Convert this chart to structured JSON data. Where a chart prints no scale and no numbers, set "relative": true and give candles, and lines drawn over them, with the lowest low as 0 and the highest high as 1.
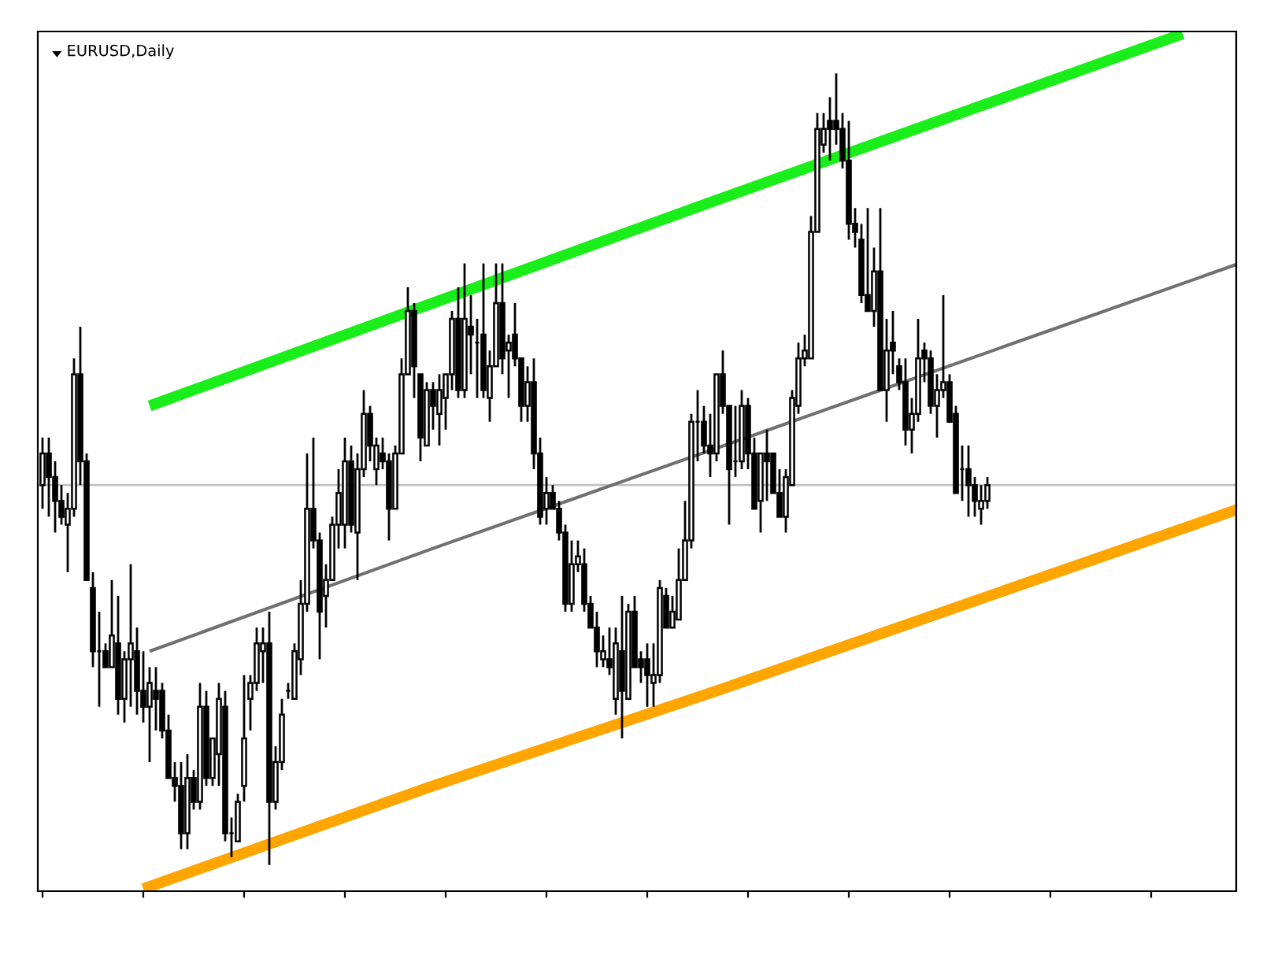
{
  "chart_data": {
    "type": "candlestick",
    "title": "EURUSD,Daily",
    "relative": true,
    "tick_labels": false,
    "legend": false,
    "grid": false,
    "categories": [
      null,
      null,
      null,
      null,
      null,
      null,
      null,
      null,
      null,
      null,
      null,
      null,
      null,
      null,
      null,
      null,
      null,
      null,
      null,
      null,
      null,
      null,
      null,
      null,
      null,
      null,
      null,
      null,
      null,
      null,
      null,
      null,
      null,
      null,
      null,
      null,
      null,
      null,
      null,
      null,
      null,
      null,
      null,
      null,
      null,
      null,
      null,
      null,
      null,
      null,
      null,
      null,
      null,
      null,
      null,
      null,
      null,
      null,
      null,
      null,
      null,
      null,
      null,
      null,
      null,
      null,
      null,
      null,
      null,
      null,
      null,
      null,
      null,
      null,
      null,
      null,
      null,
      null,
      null,
      null,
      null,
      null,
      null,
      null,
      null,
      null,
      null,
      null,
      null,
      null,
      null,
      null,
      null,
      null,
      null,
      null,
      null,
      null,
      null,
      null,
      null,
      null,
      null,
      null,
      null,
      null,
      null,
      null,
      null,
      null,
      null,
      null,
      null,
      null,
      null,
      null,
      null,
      null,
      null,
      null,
      null,
      null,
      null,
      null,
      null,
      null,
      null,
      null,
      null,
      null,
      null,
      null,
      null,
      null,
      null,
      null,
      null,
      null,
      null,
      null,
      null,
      null,
      null,
      null,
      null,
      null,
      null,
      null,
      null,
      null,
      null,
      null,
      null,
      null,
      null,
      null,
      null,
      null,
      null,
      null,
      null,
      null,
      null,
      null,
      null,
      null,
      null,
      null,
      null,
      null,
      null,
      null,
      null,
      null,
      null,
      null,
      null,
      null,
      null,
      null,
      null,
      null,
      null,
      null,
      null,
      null,
      null,
      null,
      null,
      null,
      null
    ],
    "ohlc": [
      [
        0.48,
        0.54,
        0.45,
        0.52
      ],
      [
        0.52,
        0.54,
        0.44,
        0.49
      ],
      [
        0.49,
        0.51,
        0.42,
        0.46
      ],
      [
        0.46,
        0.48,
        0.43,
        0.44
      ],
      [
        0.43,
        0.47,
        0.37,
        0.45
      ],
      [
        0.45,
        0.64,
        0.44,
        0.62
      ],
      [
        0.62,
        0.68,
        0.48,
        0.51
      ],
      [
        0.51,
        0.52,
        0.36,
        0.36
      ],
      [
        0.35,
        0.37,
        0.25,
        0.27
      ],
      [
        0.27,
        0.32,
        0.2,
        0.27
      ],
      [
        0.27,
        0.28,
        0.25,
        0.25
      ],
      [
        0.25,
        0.36,
        0.25,
        0.29
      ],
      [
        0.28,
        0.34,
        0.19,
        0.21
      ],
      [
        0.21,
        0.27,
        0.18,
        0.26
      ],
      [
        0.26,
        0.38,
        0.2,
        0.28
      ],
      [
        0.27,
        0.3,
        0.19,
        0.22
      ],
      [
        0.22,
        0.27,
        0.18,
        0.2
      ],
      [
        0.2,
        0.25,
        0.13,
        0.23
      ],
      [
        0.22,
        0.25,
        0.17,
        0.21
      ],
      [
        0.22,
        0.23,
        0.16,
        0.17
      ],
      [
        0.17,
        0.19,
        0.11,
        0.11
      ],
      [
        0.11,
        0.13,
        0.08,
        0.1
      ],
      [
        0.1,
        0.13,
        0.02,
        0.04
      ],
      [
        0.04,
        0.14,
        0.02,
        0.11
      ],
      [
        0.11,
        0.12,
        0.07,
        0.08
      ],
      [
        0.08,
        0.23,
        0.07,
        0.2
      ],
      [
        0.2,
        0.22,
        0.1,
        0.11
      ],
      [
        0.11,
        0.16,
        0.1,
        0.16
      ],
      [
        0.14,
        0.23,
        0.1,
        0.21
      ],
      [
        0.2,
        0.22,
        0.03,
        0.04
      ],
      [
        0.04,
        0.06,
        0.01,
        0.04
      ],
      [
        0.03,
        0.09,
        0.03,
        0.08
      ],
      [
        0.1,
        0.24,
        0.08,
        0.16
      ],
      [
        0.21,
        0.24,
        0.17,
        0.23
      ],
      [
        0.23,
        0.3,
        0.22,
        0.28
      ],
      [
        0.27,
        0.3,
        0.23,
        0.28
      ],
      [
        0.28,
        0.32,
        0.0,
        0.08
      ],
      [
        0.08,
        0.15,
        0.07,
        0.13
      ],
      [
        0.13,
        0.21,
        0.12,
        0.19
      ],
      [
        0.22,
        0.23,
        0.21,
        0.22
      ],
      [
        0.21,
        0.28,
        0.21,
        0.27
      ],
      [
        0.26,
        0.36,
        0.24,
        0.33
      ],
      [
        0.33,
        0.52,
        0.32,
        0.45
      ],
      [
        0.45,
        0.54,
        0.4,
        0.41
      ],
      [
        0.41,
        0.42,
        0.26,
        0.32
      ],
      [
        0.34,
        0.38,
        0.3,
        0.36
      ],
      [
        0.36,
        0.44,
        0.36,
        0.43
      ],
      [
        0.43,
        0.5,
        0.4,
        0.47
      ],
      [
        0.43,
        0.54,
        0.4,
        0.51
      ],
      [
        0.51,
        0.53,
        0.42,
        0.43
      ],
      [
        0.42,
        0.52,
        0.36,
        0.5
      ],
      [
        0.5,
        0.6,
        0.49,
        0.57
      ],
      [
        0.57,
        0.58,
        0.51,
        0.53
      ],
      [
        0.5,
        0.54,
        0.48,
        0.53
      ],
      [
        0.52,
        0.54,
        0.5,
        0.51
      ],
      [
        0.51,
        0.52,
        0.41,
        0.45
      ],
      [
        0.45,
        0.53,
        0.45,
        0.52
      ],
      [
        0.52,
        0.64,
        0.52,
        0.62
      ],
      [
        0.62,
        0.73,
        0.62,
        0.7
      ],
      [
        0.7,
        0.71,
        0.59,
        0.63
      ],
      [
        0.62,
        0.62,
        0.51,
        0.54
      ],
      [
        0.53,
        0.61,
        0.53,
        0.6
      ],
      [
        0.6,
        0.61,
        0.55,
        0.58
      ],
      [
        0.57,
        0.62,
        0.53,
        0.6
      ],
      [
        0.59,
        0.62,
        0.55,
        0.62
      ],
      [
        0.62,
        0.7,
        0.6,
        0.69
      ],
      [
        0.69,
        0.73,
        0.59,
        0.6
      ],
      [
        0.6,
        0.76,
        0.59,
        0.69
      ],
      [
        0.68,
        0.72,
        0.62,
        0.67
      ],
      [
        0.66,
        0.69,
        0.59,
        0.66
      ],
      [
        0.67,
        0.76,
        0.59,
        0.6
      ],
      [
        0.59,
        0.65,
        0.56,
        0.63
      ],
      [
        0.63,
        0.76,
        0.63,
        0.71
      ],
      [
        0.71,
        0.76,
        0.62,
        0.64
      ],
      [
        0.65,
        0.67,
        0.59,
        0.66
      ],
      [
        0.67,
        0.71,
        0.63,
        0.64
      ],
      [
        0.64,
        0.64,
        0.56,
        0.58
      ],
      [
        0.58,
        0.63,
        0.56,
        0.61
      ],
      [
        0.61,
        0.64,
        0.5,
        0.52
      ],
      [
        0.52,
        0.54,
        0.43,
        0.44
      ],
      [
        0.45,
        0.49,
        0.43,
        0.47
      ],
      [
        0.47,
        0.48,
        0.45,
        0.45
      ],
      [
        0.45,
        0.46,
        0.41,
        0.42
      ],
      [
        0.42,
        0.43,
        0.32,
        0.33
      ],
      [
        0.33,
        0.41,
        0.32,
        0.38
      ],
      [
        0.38,
        0.41,
        0.37,
        0.39
      ],
      [
        0.38,
        0.4,
        0.32,
        0.33
      ],
      [
        0.33,
        0.34,
        0.3,
        0.3
      ],
      [
        0.3,
        0.32,
        0.25,
        0.27
      ],
      [
        0.26,
        0.29,
        0.25,
        0.27
      ],
      [
        0.26,
        0.3,
        0.24,
        0.25
      ],
      [
        0.21,
        0.3,
        0.19,
        0.28
      ],
      [
        0.27,
        0.34,
        0.16,
        0.22
      ],
      [
        0.21,
        0.33,
        0.21,
        0.32
      ],
      [
        0.32,
        0.34,
        0.25,
        0.25
      ],
      [
        0.26,
        0.27,
        0.23,
        0.25
      ],
      [
        0.26,
        0.28,
        0.2,
        0.24
      ],
      [
        0.23,
        0.28,
        0.2,
        0.24
      ],
      [
        0.24,
        0.36,
        0.23,
        0.35
      ],
      [
        0.34,
        0.35,
        0.3,
        0.3
      ],
      [
        0.3,
        0.34,
        0.3,
        0.32
      ],
      [
        0.31,
        0.4,
        0.31,
        0.36
      ],
      [
        0.36,
        0.46,
        0.36,
        0.41
      ],
      [
        0.41,
        0.57,
        0.4,
        0.56
      ],
      [
        0.56,
        0.6,
        0.51,
        0.56
      ],
      [
        0.56,
        0.58,
        0.52,
        0.53
      ],
      [
        0.53,
        0.57,
        0.49,
        0.52
      ],
      [
        0.52,
        0.62,
        0.51,
        0.62
      ],
      [
        0.62,
        0.65,
        0.57,
        0.58
      ],
      [
        0.58,
        0.58,
        0.43,
        0.5
      ],
      [
        0.51,
        0.58,
        0.49,
        0.51
      ],
      [
        0.51,
        0.6,
        0.5,
        0.58
      ],
      [
        0.58,
        0.59,
        0.5,
        0.52
      ],
      [
        0.52,
        0.54,
        0.45,
        0.45
      ],
      [
        0.46,
        0.52,
        0.42,
        0.52
      ],
      [
        0.52,
        0.55,
        0.46,
        0.51
      ],
      [
        0.52,
        0.52,
        0.47,
        0.47
      ],
      [
        0.47,
        0.5,
        0.44,
        0.44
      ],
      [
        0.44,
        0.5,
        0.42,
        0.49
      ],
      [
        0.48,
        0.6,
        0.48,
        0.59
      ],
      [
        0.58,
        0.66,
        0.57,
        0.64
      ],
      [
        0.64,
        0.67,
        0.63,
        0.65
      ],
      [
        0.64,
        0.82,
        0.64,
        0.8
      ],
      [
        0.8,
        0.95,
        0.8,
        0.93
      ],
      [
        0.91,
        0.95,
        0.9,
        0.93
      ],
      [
        0.94,
        0.97,
        0.89,
        0.93
      ],
      [
        0.94,
        1.0,
        0.91,
        0.93
      ],
      [
        0.93,
        0.95,
        0.88,
        0.89
      ],
      [
        0.89,
        0.94,
        0.79,
        0.81
      ],
      [
        0.81,
        0.83,
        0.78,
        0.8
      ],
      [
        0.79,
        0.81,
        0.71,
        0.72
      ],
      [
        0.72,
        0.83,
        0.7,
        0.7
      ],
      [
        0.7,
        0.78,
        0.68,
        0.75
      ],
      [
        0.75,
        0.83,
        0.6,
        0.6
      ],
      [
        0.6,
        0.69,
        0.56,
        0.65
      ],
      [
        0.66,
        0.7,
        0.62,
        0.65
      ],
      [
        0.63,
        0.64,
        0.6,
        0.61
      ],
      [
        0.61,
        0.64,
        0.53,
        0.55
      ],
      [
        0.55,
        0.59,
        0.52,
        0.57
      ],
      [
        0.57,
        0.69,
        0.56,
        0.64
      ],
      [
        0.65,
        0.66,
        0.61,
        0.64
      ],
      [
        0.64,
        0.65,
        0.57,
        0.58
      ],
      [
        0.58,
        0.62,
        0.54,
        0.6
      ],
      [
        0.6,
        0.72,
        0.59,
        0.61
      ],
      [
        0.61,
        0.62,
        0.56,
        0.56
      ],
      [
        0.57,
        0.58,
        0.47,
        0.47
      ],
      [
        0.5,
        0.53,
        0.46,
        0.5
      ],
      [
        0.5,
        0.53,
        0.44,
        0.48
      ],
      [
        0.48,
        0.49,
        0.44,
        0.46
      ],
      [
        0.45,
        0.48,
        0.43,
        0.46
      ],
      [
        0.46,
        0.49,
        0.45,
        0.48
      ],
      null,
      null,
      null,
      null,
      null,
      null,
      null,
      null,
      null,
      null,
      null,
      null,
      null,
      null,
      null,
      null,
      null,
      null,
      null,
      null,
      null,
      null,
      null,
      null,
      null,
      null,
      null,
      null,
      null,
      null,
      null,
      null,
      null,
      null,
      null,
      null,
      null,
      null,
      null,
      null
    ],
    "series": [
      {
        "type": "line",
        "color": "#1aee1a",
        "values": [
          null,
          null,
          null,
          null,
          null,
          null,
          null,
          null,
          null,
          null,
          null,
          null,
          null,
          null,
          null,
          null,
          null,
          0.58,
          null,
          null,
          null,
          null,
          null,
          null,
          null,
          null,
          null,
          null,
          null,
          null,
          null,
          null,
          null,
          null,
          null,
          null,
          null,
          null,
          null,
          null,
          null,
          null,
          null,
          null,
          null,
          null,
          null,
          null,
          null,
          null,
          null,
          null,
          null,
          null,
          null,
          null,
          null,
          null,
          null,
          null,
          null,
          null,
          0.71,
          null,
          null,
          null,
          null,
          null,
          null,
          null,
          null,
          null,
          null,
          null,
          null,
          null,
          null,
          null,
          null,
          null,
          null,
          null,
          null,
          null,
          null,
          null,
          null,
          null,
          null,
          null,
          null,
          null,
          null,
          null,
          null,
          null,
          null,
          null,
          null,
          null,
          null,
          null,
          null,
          null,
          null,
          null,
          null,
          0.84,
          null,
          null,
          null,
          null,
          null,
          null,
          null,
          null,
          null,
          null,
          null,
          null,
          null,
          null,
          null,
          null,
          null,
          null,
          null,
          null,
          null,
          null,
          null,
          null,
          null,
          null,
          null,
          null,
          null,
          null,
          null,
          null,
          null,
          null,
          null,
          null,
          null,
          null,
          null,
          null,
          null,
          null,
          null,
          null,
          null,
          null,
          null,
          null,
          null,
          null,
          null,
          null,
          null,
          null,
          null,
          null,
          null,
          null,
          null,
          null,
          null,
          null,
          null,
          null,
          null,
          null,
          null,
          null,
          null,
          null,
          null,
          null,
          null,
          1.05,
          null,
          null,
          null,
          null,
          null,
          null,
          null,
          null,
          null
        ]
      },
      {
        "type": "line",
        "color": "#707070",
        "values": [
          null,
          null,
          null,
          null,
          null,
          null,
          null,
          null,
          null,
          null,
          null,
          null,
          null,
          null,
          null,
          null,
          null,
          0.27,
          null,
          null,
          null,
          null,
          null,
          null,
          null,
          null,
          null,
          null,
          null,
          null,
          null,
          null,
          null,
          null,
          null,
          null,
          null,
          null,
          null,
          null,
          null,
          null,
          null,
          null,
          null,
          null,
          null,
          null,
          null,
          null,
          null,
          null,
          null,
          null,
          null,
          null,
          null,
          null,
          null,
          null,
          null,
          null,
          0.4,
          null,
          null,
          null,
          null,
          null,
          null,
          null,
          null,
          null,
          null,
          null,
          null,
          null,
          null,
          null,
          null,
          null,
          null,
          null,
          null,
          null,
          null,
          null,
          null,
          null,
          null,
          null,
          null,
          null,
          null,
          null,
          null,
          null,
          null,
          null,
          null,
          null,
          null,
          null,
          null,
          null,
          null,
          null,
          null,
          null,
          null,
          null,
          null,
          null,
          null,
          null,
          null,
          null,
          null,
          null,
          null,
          null,
          null,
          null,
          null,
          null,
          null,
          null,
          null,
          null,
          null,
          null,
          null,
          null,
          null,
          null,
          null,
          null,
          null,
          null,
          null,
          null,
          null,
          null,
          null,
          null,
          null,
          null,
          null,
          null,
          null,
          null,
          null,
          null,
          null,
          null,
          null,
          null,
          null,
          null,
          null,
          null,
          null,
          null,
          null,
          null,
          null,
          null,
          null,
          null,
          null,
          null,
          null,
          null,
          null,
          null,
          null,
          null,
          null,
          null,
          null,
          null,
          null,
          null,
          null,
          null,
          null,
          null,
          null,
          null,
          null,
          null,
          0.76
        ]
      },
      {
        "type": "line",
        "color": "#ffa500",
        "values": [
          null,
          null,
          null,
          null,
          null,
          null,
          null,
          null,
          null,
          null,
          null,
          null,
          null,
          null,
          null,
          null,
          -0.03,
          null,
          null,
          null,
          null,
          null,
          null,
          null,
          null,
          null,
          null,
          null,
          null,
          null,
          null,
          null,
          null,
          null,
          null,
          null,
          null,
          null,
          null,
          null,
          null,
          null,
          null,
          null,
          null,
          null,
          null,
          null,
          null,
          null,
          null,
          null,
          null,
          null,
          null,
          null,
          null,
          null,
          null,
          null,
          null,
          null,
          0.1,
          null,
          null,
          null,
          null,
          null,
          null,
          null,
          null,
          null,
          null,
          null,
          null,
          null,
          null,
          null,
          null,
          null,
          null,
          null,
          null,
          null,
          null,
          null,
          null,
          null,
          null,
          null,
          null,
          null,
          null,
          null,
          null,
          null,
          null,
          null,
          null,
          null,
          null,
          null,
          null,
          null,
          null,
          null,
          null,
          0.22,
          null,
          null,
          null,
          null,
          null,
          null,
          null,
          null,
          null,
          null,
          null,
          null,
          null,
          null,
          null,
          null,
          null,
          null,
          null,
          null,
          null,
          null,
          null,
          null,
          null,
          null,
          null,
          null,
          null,
          null,
          null,
          null,
          null,
          null,
          null,
          null,
          null,
          null,
          null,
          null,
          null,
          null,
          null,
          null,
          null,
          null,
          null,
          null,
          null,
          null,
          null,
          null,
          null,
          null,
          null,
          null,
          null,
          null,
          null,
          null,
          null,
          null,
          null,
          null,
          null,
          null,
          null,
          null,
          null,
          null,
          null,
          null,
          null,
          null,
          null,
          null,
          null,
          null,
          null,
          null,
          null,
          null,
          0.45
        ]
      }
    ],
    "ref_lines": [
      {
        "axis": "y",
        "value": 0.48,
        "color": "#c0c0c0"
      }
    ]
  }
}
